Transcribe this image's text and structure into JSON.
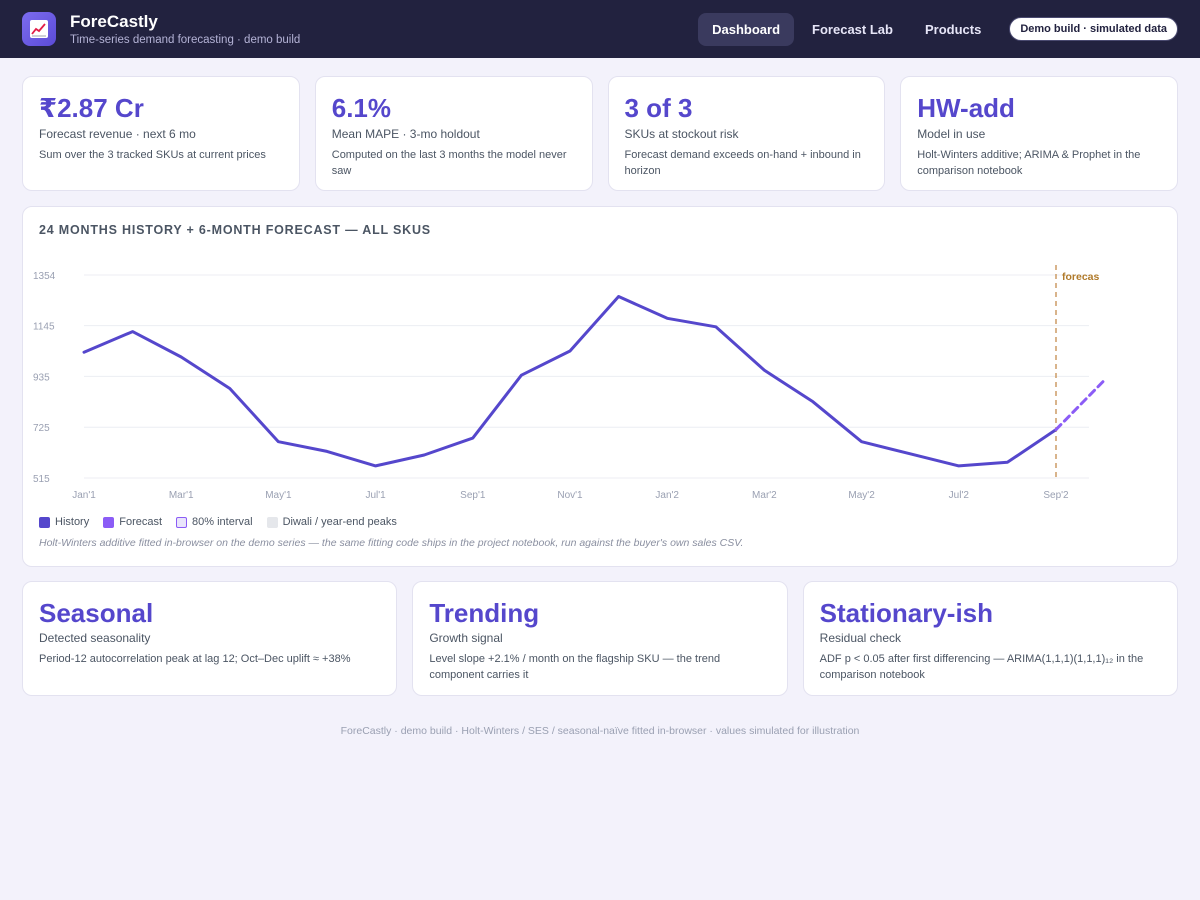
{
  "header": {
    "logo_icon": "chart-trend-icon",
    "app_name": "ForeCastly",
    "subtitle": "Time-series demand forecasting · demo build",
    "nav": [
      {
        "label": "Dashboard",
        "active": true
      },
      {
        "label": "Forecast Lab",
        "active": false
      },
      {
        "label": "Products",
        "active": false
      }
    ],
    "badge": "Demo build · simulated data"
  },
  "kpis": [
    {
      "value": "₹2.87 Cr",
      "label": "Forecast revenue · next 6 mo",
      "note": "Sum over the 3 tracked SKUs at current prices"
    },
    {
      "value": "6.1%",
      "label": "Mean MAPE · 3-mo holdout",
      "note": "Computed on the last 3 months the model never saw"
    },
    {
      "value": "3 of 3",
      "label": "SKUs at stockout risk",
      "note": "Forecast demand exceeds on-hand + inbound in horizon"
    },
    {
      "value": "HW-add",
      "label": "Model in use",
      "note": "Holt-Winters additive; ARIMA & Prophet in the comparison notebook"
    }
  ],
  "chart": {
    "title": "24 months history + 6-month forecast — all SKUs",
    "forecast_marker_label": "forecas",
    "legend": [
      {
        "label": "History",
        "color": "#5547cc"
      },
      {
        "label": "Forecast",
        "color": "#8b5cf6"
      },
      {
        "label": "80% interval",
        "color": "#e9e5fb"
      },
      {
        "label": "Diwali / year-end peaks",
        "color": "#e5e7eb"
      }
    ],
    "caption": "Holt-Winters additive fitted in-browser on the demo series — the same fitting code ships in the project notebook, run against the buyer's own sales CSV."
  },
  "chart_data": {
    "type": "line",
    "title": "24 months history + 6-month forecast — all SKUs",
    "xlabel": "",
    "ylabel": "",
    "x_tick_labels": [
      "Jan'1",
      "Mar'1",
      "May'1",
      "Jul'1",
      "Sep'1",
      "Nov'1",
      "Jan'2",
      "Mar'2",
      "May'2",
      "Jul'2",
      "Sep'2"
    ],
    "y_ticks": [
      515,
      725,
      935,
      1145,
      1354
    ],
    "ylim": [
      515,
      1354
    ],
    "grid": true,
    "series": [
      {
        "name": "History",
        "style": "solid",
        "color": "#5547cc",
        "x": [
          "Jan'1",
          "Feb'1",
          "Mar'1",
          "Apr'1",
          "May'1",
          "Jun'1",
          "Jul'1",
          "Aug'1",
          "Sep'1",
          "Oct'1",
          "Nov'1",
          "Dec'1",
          "Jan'2",
          "Feb'2",
          "Mar'2",
          "Apr'2",
          "May'2",
          "Jun'2",
          "Jul'2",
          "Aug'2",
          "Sep'2"
        ],
        "values": [
          1035,
          1120,
          1015,
          885,
          665,
          625,
          565,
          610,
          680,
          940,
          1040,
          1265,
          1175,
          1140,
          960,
          830,
          665,
          615,
          565,
          580,
          715
        ]
      },
      {
        "name": "Forecast",
        "style": "dashed",
        "color": "#8b5cf6",
        "x": [
          "Sep'2",
          "Oct'2"
        ],
        "values": [
          715,
          920
        ]
      }
    ],
    "forecast_start": "Sep'2"
  },
  "signals": [
    {
      "value": "Seasonal",
      "label": "Detected seasonality",
      "note": "Period-12 autocorrelation peak at lag 12; Oct–Dec uplift ≈ +38%"
    },
    {
      "value": "Trending",
      "label": "Growth signal",
      "note": "Level slope +2.1% / month on the flagship SKU — the trend component carries it"
    },
    {
      "value": "Stationary-ish",
      "label": "Residual check",
      "note": "ADF p < 0.05 after first differencing — ARIMA(1,1,1)(1,1,1)₁₂ in the comparison notebook"
    }
  ],
  "footer": "ForeCastly · demo build · Holt-Winters / SES / seasonal-naïve fitted in-browser · values simulated for illustration"
}
